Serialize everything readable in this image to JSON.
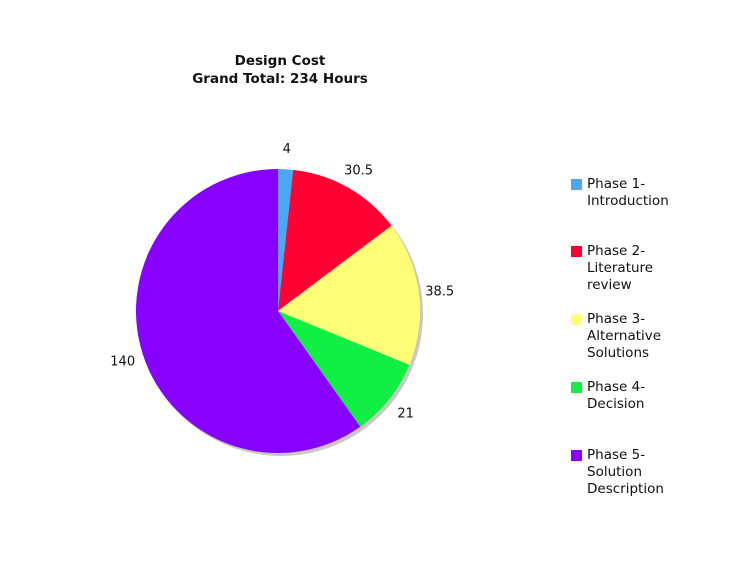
{
  "chart_data": {
    "type": "pie",
    "title": "Design Cost",
    "subtitle": "Grand Total:  234 Hours",
    "start": "top",
    "direction": "clockwise",
    "legend_position": "right",
    "slices": [
      {
        "label": "Phase 1-\nIntroduction",
        "value": 4,
        "value_label": "4",
        "color": "#4da6f0"
      },
      {
        "label": "Phase 2-\nLiterature\nreview",
        "value": 30.5,
        "value_label": "30.5",
        "color": "#ff0033"
      },
      {
        "label": "Phase 3-\nAlternative\nSolutions",
        "value": 38.5,
        "value_label": "38.5",
        "color": "#ffff77"
      },
      {
        "label": "Phase 4-\nDecision",
        "value": 21,
        "value_label": "21",
        "color": "#11ee44"
      },
      {
        "label": "Phase 5-\nSolution\nDescription",
        "value": 140,
        "value_label": "140",
        "color": "#8800ff"
      }
    ]
  }
}
